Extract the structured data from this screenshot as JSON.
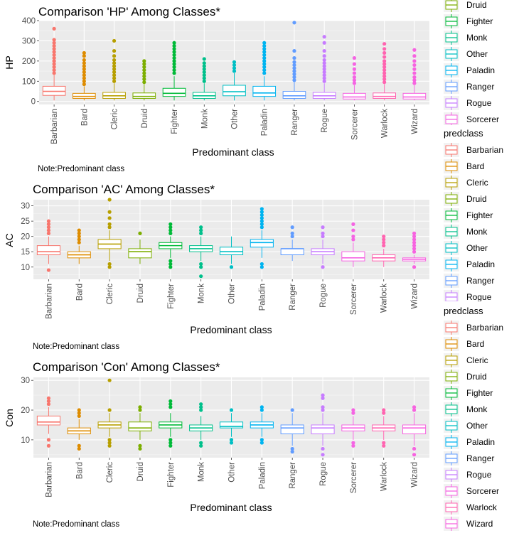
{
  "classes": [
    "Barbarian",
    "Bard",
    "Cleric",
    "Druid",
    "Fighter",
    "Monk",
    "Other",
    "Paladin",
    "Ranger",
    "Rogue",
    "Sorcerer",
    "Warlock",
    "Wizard"
  ],
  "class_colors": [
    "#F8766D",
    "#DE8C00",
    "#B79F00",
    "#7CAE00",
    "#00BA38",
    "#00C08B",
    "#00BFC4",
    "#00B4F0",
    "#619CFF",
    "#C77CFF",
    "#F564E3",
    "#FF64B0",
    "#F763E0"
  ],
  "legend_title": "predclass",
  "chart_data": [
    {
      "type": "boxplot",
      "title": "Comparison 'HP' Among Classes*",
      "xlabel": "Predominant class",
      "ylabel": "HP",
      "note": "Note:Predominant class",
      "ylim": [
        -15,
        400
      ],
      "yticks": [
        0,
        100,
        200,
        300,
        400
      ],
      "categories": [
        "Barbarian",
        "Bard",
        "Cleric",
        "Druid",
        "Fighter",
        "Monk",
        "Other",
        "Paladin",
        "Ranger",
        "Rogue",
        "Sorcerer",
        "Warlock",
        "Wizard"
      ],
      "boxes": [
        {
          "q1": 30,
          "median": 50,
          "q3": 75,
          "low": 5,
          "high": 130
        },
        {
          "q1": 15,
          "median": 25,
          "q3": 40,
          "low": 5,
          "high": 75
        },
        {
          "q1": 15,
          "median": 28,
          "q3": 45,
          "low": 5,
          "high": 90
        },
        {
          "q1": 15,
          "median": 25,
          "q3": 42,
          "low": 5,
          "high": 85
        },
        {
          "q1": 25,
          "median": 40,
          "q3": 65,
          "low": 5,
          "high": 125
        },
        {
          "q1": 15,
          "median": 28,
          "q3": 45,
          "low": 5,
          "high": 90
        },
        {
          "q1": 28,
          "median": 48,
          "q3": 80,
          "low": 5,
          "high": 140
        },
        {
          "q1": 25,
          "median": 42,
          "q3": 75,
          "low": 5,
          "high": 125
        },
        {
          "q1": 15,
          "median": 28,
          "q3": 50,
          "low": 5,
          "high": 95
        },
        {
          "q1": 15,
          "median": 28,
          "q3": 45,
          "low": 5,
          "high": 90
        },
        {
          "q1": 12,
          "median": 22,
          "q3": 40,
          "low": 5,
          "high": 80
        },
        {
          "q1": 15,
          "median": 25,
          "q3": 42,
          "low": 5,
          "high": 85
        },
        {
          "q1": 12,
          "median": 22,
          "q3": 40,
          "low": 5,
          "high": 80
        }
      ],
      "outliers": [
        [
          140,
          155,
          170,
          185,
          200,
          215,
          230,
          245,
          260,
          275,
          290,
          305,
          360
        ],
        [
          85,
          100,
          115,
          130,
          145,
          160,
          175,
          190,
          205,
          225,
          240
        ],
        [
          100,
          115,
          130,
          145,
          160,
          175,
          190,
          205,
          225,
          250,
          300
        ],
        [
          95,
          110,
          125,
          140,
          155,
          170,
          185,
          200
        ],
        [
          140,
          155,
          170,
          185,
          200,
          215,
          230,
          245,
          260,
          275,
          290
        ],
        [
          100,
          115,
          130,
          145,
          160,
          175,
          190,
          210
        ],
        [
          150,
          165,
          180,
          195
        ],
        [
          140,
          155,
          170,
          185,
          200,
          215,
          230,
          245,
          260,
          275,
          290
        ],
        [
          105,
          120,
          135,
          150,
          165,
          180,
          195,
          215,
          250,
          390
        ],
        [
          100,
          115,
          130,
          145,
          160,
          175,
          190,
          205,
          225,
          250,
          290,
          320
        ],
        [
          90,
          105,
          120,
          140,
          160,
          185,
          215
        ],
        [
          95,
          110,
          125,
          140,
          155,
          170,
          185,
          200,
          220,
          240,
          260,
          285
        ],
        [
          90,
          105,
          120,
          140,
          160,
          180,
          200,
          225,
          255
        ]
      ]
    },
    {
      "type": "boxplot",
      "title": "Comparison 'AC' Among Classes*",
      "xlabel": "Predominant class",
      "ylabel": "AC",
      "note": "Note:Predominant class",
      "ylim": [
        6,
        32
      ],
      "yticks": [
        10,
        15,
        20,
        25,
        30
      ],
      "categories": [
        "Barbarian",
        "Bard",
        "Cleric",
        "Druid",
        "Fighter",
        "Monk",
        "Other",
        "Paladin",
        "Ranger",
        "Rogue",
        "Sorcerer",
        "Warlock",
        "Wizard"
      ],
      "boxes": [
        {
          "q1": 14,
          "median": 15,
          "q3": 17,
          "low": 11,
          "high": 20
        },
        {
          "q1": 13,
          "median": 14,
          "q3": 15,
          "low": 11,
          "high": 17
        },
        {
          "q1": 16,
          "median": 17.5,
          "q3": 19,
          "low": 12,
          "high": 22
        },
        {
          "q1": 13,
          "median": 15,
          "q3": 16,
          "low": 11,
          "high": 19
        },
        {
          "q1": 16,
          "median": 17,
          "q3": 18,
          "low": 13,
          "high": 20
        },
        {
          "q1": 15,
          "median": 16,
          "q3": 17,
          "low": 12,
          "high": 20
        },
        {
          "q1": 14,
          "median": 15,
          "q3": 16.5,
          "low": 11,
          "high": 20
        },
        {
          "q1": 16.5,
          "median": 18,
          "q3": 19,
          "low": 13,
          "high": 22
        },
        {
          "q1": 14,
          "median": 16,
          "q3": 16,
          "low": 12,
          "high": 19
        },
        {
          "q1": 14,
          "median": 15,
          "q3": 16,
          "low": 11,
          "high": 19
        },
        {
          "q1": 12,
          "median": 13,
          "q3": 15,
          "low": 10,
          "high": 18
        },
        {
          "q1": 12,
          "median": 13,
          "q3": 14,
          "low": 10,
          "high": 16
        },
        {
          "q1": 12,
          "median": 12.5,
          "q3": 13,
          "low": 11,
          "high": 14
        }
      ],
      "outliers": [
        [
          9,
          21,
          22,
          23,
          24,
          25
        ],
        [
          18,
          19,
          20,
          21,
          22
        ],
        [
          10,
          11,
          23,
          24,
          26,
          28,
          32
        ],
        [
          21
        ],
        [
          10,
          11,
          12,
          21,
          22,
          23,
          24
        ],
        [
          7,
          10,
          11,
          21,
          22,
          23
        ],
        [
          10
        ],
        [
          10,
          11,
          23,
          24,
          25,
          26,
          27,
          28,
          29
        ],
        [
          20,
          21,
          23
        ],
        [
          10,
          20,
          21,
          23
        ],
        [
          19,
          20,
          22,
          24
        ],
        [
          17,
          18,
          19,
          20
        ],
        [
          10,
          15,
          16,
          17,
          18,
          19,
          20,
          21
        ]
      ]
    },
    {
      "type": "boxplot",
      "title": "Comparison 'Con' Among Classes*",
      "xlabel": "Predominant class",
      "ylabel": "Con",
      "note": "Note:Predominant class",
      "ylim": [
        4,
        31
      ],
      "yticks": [
        10,
        20,
        30
      ],
      "categories": [
        "Barbarian",
        "Bard",
        "Cleric",
        "Druid",
        "Fighter",
        "Monk",
        "Other",
        "Paladin",
        "Ranger",
        "Rogue",
        "Sorcerer",
        "Warlock",
        "Wizard"
      ],
      "boxes": [
        {
          "q1": 15,
          "median": 16,
          "q3": 18,
          "low": 12,
          "high": 21
        },
        {
          "q1": 12,
          "median": 13,
          "q3": 14,
          "low": 10,
          "high": 17
        },
        {
          "q1": 14,
          "median": 15,
          "q3": 16,
          "low": 11,
          "high": 19
        },
        {
          "q1": 13,
          "median": 14,
          "q3": 16,
          "low": 10,
          "high": 19
        },
        {
          "q1": 14,
          "median": 15,
          "q3": 16,
          "low": 11,
          "high": 19
        },
        {
          "q1": 13,
          "median": 14,
          "q3": 15,
          "low": 10,
          "high": 18
        },
        {
          "q1": 14,
          "median": 14.5,
          "q3": 16,
          "low": 11,
          "high": 19
        },
        {
          "q1": 14,
          "median": 15,
          "q3": 16,
          "low": 11,
          "high": 19
        },
        {
          "q1": 12,
          "median": 14,
          "q3": 15,
          "low": 8,
          "high": 19
        },
        {
          "q1": 12,
          "median": 14,
          "q3": 15,
          "low": 8,
          "high": 19
        },
        {
          "q1": 13,
          "median": 14,
          "q3": 15,
          "low": 10,
          "high": 18
        },
        {
          "q1": 13,
          "median": 14,
          "q3": 15,
          "low": 10,
          "high": 18
        },
        {
          "q1": 12,
          "median": 14,
          "q3": 15,
          "low": 8,
          "high": 19
        }
      ],
      "outliers": [
        [
          8,
          10,
          22,
          23,
          24
        ],
        [
          7,
          8,
          18,
          19,
          20
        ],
        [
          8,
          9,
          10,
          20,
          30
        ],
        [
          7,
          8,
          20,
          21
        ],
        [
          8,
          9,
          10,
          21,
          22,
          23
        ],
        [
          8,
          9,
          20,
          21,
          22
        ],
        [
          9,
          10,
          20
        ],
        [
          9,
          10,
          20,
          21
        ],
        [
          6,
          7,
          20
        ],
        [
          5,
          7,
          20,
          21,
          24,
          25
        ],
        [
          8,
          9,
          19,
          20
        ],
        [
          8,
          9,
          19,
          20
        ],
        [
          5,
          7,
          20,
          21
        ]
      ]
    }
  ]
}
